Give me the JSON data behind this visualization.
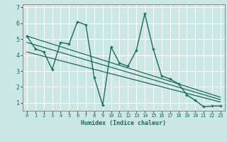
{
  "xlabel": "Humidex (Indice chaleur)",
  "ylabel": "",
  "bg_color": "#cce8e4",
  "grid_color": "#ffffff",
  "line_color": "#1a6b5a",
  "xlim": [
    -0.5,
    23.5
  ],
  "ylim": [
    0.5,
    7.2
  ],
  "xticks": [
    0,
    1,
    2,
    3,
    4,
    5,
    6,
    7,
    8,
    9,
    10,
    11,
    12,
    13,
    14,
    15,
    16,
    17,
    18,
    19,
    20,
    21,
    22,
    23
  ],
  "yticks": [
    1,
    2,
    3,
    4,
    5,
    6,
    7
  ],
  "series1_x": [
    0,
    1,
    2,
    3,
    4,
    5,
    6,
    7,
    8,
    9,
    10,
    11,
    12,
    13,
    14,
    15,
    16,
    17,
    18,
    19,
    20,
    21,
    22,
    23
  ],
  "series1_y": [
    5.2,
    4.4,
    4.2,
    3.1,
    4.8,
    4.7,
    6.1,
    5.9,
    2.6,
    0.85,
    4.5,
    3.5,
    3.3,
    4.3,
    6.6,
    4.4,
    2.7,
    2.5,
    2.2,
    1.5,
    1.15,
    0.75,
    0.8,
    0.8
  ],
  "trend1_x": [
    0,
    23
  ],
  "trend1_y": [
    5.2,
    1.35
  ],
  "trend2_x": [
    0,
    23
  ],
  "trend2_y": [
    4.8,
    1.2
  ],
  "trend3_x": [
    0,
    23
  ],
  "trend3_y": [
    4.2,
    1.05
  ]
}
